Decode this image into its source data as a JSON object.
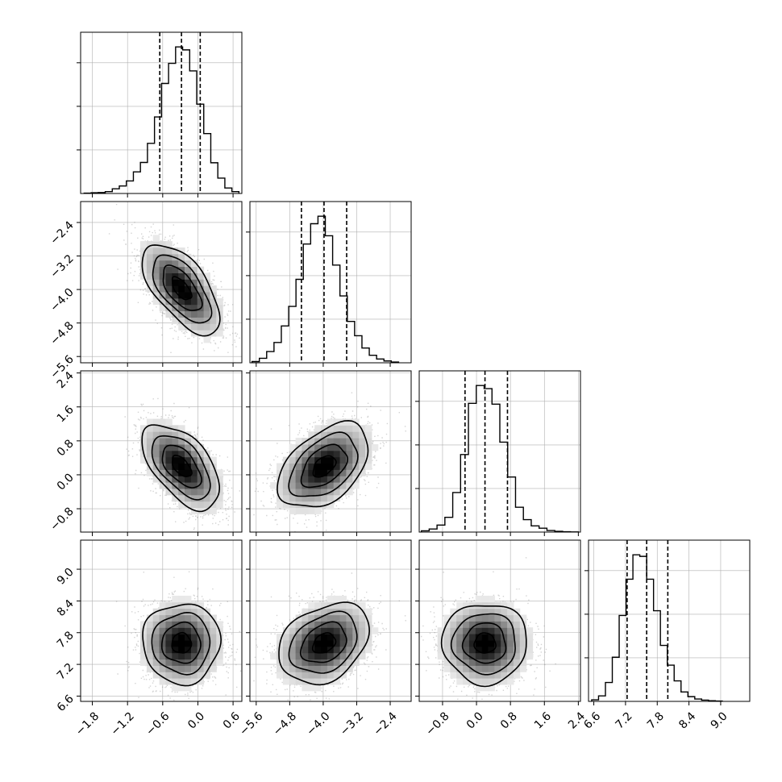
{
  "chart_data": {
    "type": "corner",
    "title": "",
    "n_params": 4,
    "grid": true,
    "params": [
      {
        "range": [
          -2.0,
          0.75
        ],
        "ticks": [
          -1.8,
          -1.2,
          -0.6,
          0.0,
          0.6
        ],
        "tick_labels": [
          "−1.8",
          "−1.2",
          "−0.6",
          "0.0",
          "0.6"
        ],
        "quantiles": [
          -0.65,
          -0.28,
          0.04
        ],
        "histogram": {
          "bin_edges": [
            -1.94,
            -1.82,
            -1.7,
            -1.58,
            -1.46,
            -1.34,
            -1.22,
            -1.1,
            -0.98,
            -0.86,
            -0.74,
            -0.62,
            -0.5,
            -0.38,
            -0.26,
            -0.14,
            -0.02,
            0.1,
            0.22,
            0.34,
            0.46,
            0.58,
            0.7
          ],
          "counts": [
            2,
            5,
            6,
            12,
            30,
            48,
            80,
            138,
            198,
            320,
            488,
            702,
            830,
            935,
            916,
            782,
            570,
            382,
            196,
            98,
            35,
            12
          ]
        }
      },
      {
        "range": [
          -5.75,
          -1.9
        ],
        "ticks": [
          -5.6,
          -4.8,
          -4.0,
          -3.2,
          -2.4
        ],
        "tick_labels": [
          "−5.6",
          "−4.8",
          "−4.0",
          "−3.2",
          "−2.4"
        ],
        "quantiles": [
          -4.52,
          -3.98,
          -3.44
        ],
        "histogram": {
          "bin_edges": [
            -5.7,
            -5.525,
            -5.35,
            -5.175,
            -5.0,
            -4.825,
            -4.65,
            -4.475,
            -4.3,
            -4.125,
            -3.95,
            -3.775,
            -3.6,
            -3.425,
            -3.25,
            -3.075,
            -2.9,
            -2.725,
            -2.55,
            -2.375,
            -2.2
          ],
          "counts": [
            8,
            30,
            75,
            135,
            245,
            375,
            555,
            790,
            925,
            975,
            845,
            650,
            445,
            275,
            180,
            98,
            50,
            25,
            12,
            5
          ]
        }
      },
      {
        "range": [
          -1.35,
          2.45
        ],
        "ticks": [
          -0.8,
          0.0,
          0.8,
          1.6,
          2.4
        ],
        "tick_labels": [
          "−0.8",
          "0.0",
          "0.8",
          "1.6",
          "2.4"
        ],
        "quantiles": [
          -0.27,
          0.2,
          0.73
        ],
        "histogram": {
          "bin_edges": [
            -1.3,
            -1.115,
            -0.93,
            -0.745,
            -0.56,
            -0.375,
            -0.19,
            -0.005,
            0.18,
            0.365,
            0.55,
            0.735,
            0.92,
            1.105,
            1.29,
            1.475,
            1.66,
            1.845,
            2.03,
            2.215,
            2.4
          ],
          "counts": [
            8,
            20,
            45,
            95,
            255,
            500,
            830,
            945,
            925,
            825,
            580,
            355,
            160,
            80,
            40,
            25,
            10,
            5,
            2,
            1
          ]
        }
      },
      {
        "range": [
          6.5,
          9.55
        ],
        "ticks": [
          6.6,
          7.2,
          7.8,
          8.4,
          9.0
        ],
        "tick_labels": [
          "6.6",
          "7.2",
          "7.8",
          "8.4",
          "9.0"
        ],
        "quantiles": [
          7.23,
          7.6,
          8.0
        ],
        "histogram": {
          "bin_edges": [
            6.56,
            6.69,
            6.82,
            6.95,
            7.08,
            7.21,
            7.34,
            7.47,
            7.6,
            7.73,
            7.86,
            7.99,
            8.12,
            8.25,
            8.38,
            8.51,
            8.64,
            8.77,
            8.9,
            9.03
          ],
          "counts": [
            10,
            35,
            120,
            280,
            545,
            775,
            930,
            920,
            775,
            575,
            355,
            230,
            130,
            60,
            30,
            15,
            8,
            4,
            2
          ]
        }
      }
    ],
    "pairs": [
      {
        "i": 1,
        "j": 0,
        "mean": [
          -0.28,
          -3.98
        ],
        "sd": [
          0.33,
          0.54
        ],
        "rho": -0.62
      },
      {
        "i": 2,
        "j": 0,
        "mean": [
          -0.28,
          0.2
        ],
        "sd": [
          0.33,
          0.5
        ],
        "rho": -0.55
      },
      {
        "i": 2,
        "j": 1,
        "mean": [
          -3.98,
          0.2
        ],
        "sd": [
          0.54,
          0.5
        ],
        "rho": 0.45
      },
      {
        "i": 3,
        "j": 0,
        "mean": [
          -0.28,
          7.6
        ],
        "sd": [
          0.33,
          0.38
        ],
        "rho": 0.0
      },
      {
        "i": 3,
        "j": 1,
        "mean": [
          -3.98,
          7.6
        ],
        "sd": [
          0.54,
          0.38
        ],
        "rho": 0.3
      },
      {
        "i": 3,
        "j": 2,
        "mean": [
          0.2,
          7.6
        ],
        "sd": [
          0.5,
          0.38
        ],
        "rho": 0.0
      }
    ],
    "contour_levels_sigma": [
      0.5,
      1.0,
      1.5,
      2.0
    ],
    "colors": {
      "line": "#000000",
      "grid": "#b0b0b0",
      "point": "#808080"
    }
  }
}
